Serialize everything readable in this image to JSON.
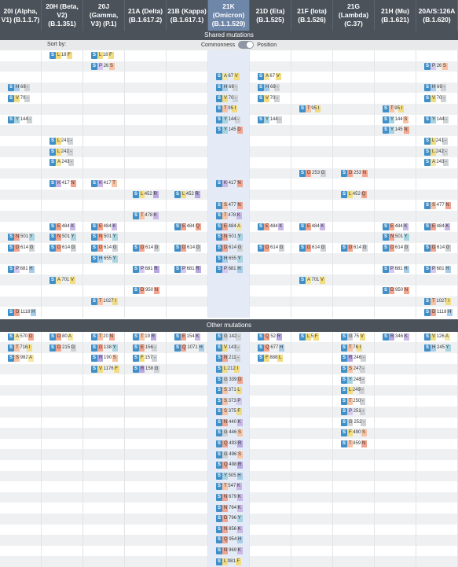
{
  "header": {
    "columns": [
      {
        "line1": "20I (Alpha,",
        "line2": "V1) (B.1.1.7)"
      },
      {
        "line1": "20H (Beta,",
        "line2": "V2) (B.1.351)"
      },
      {
        "line1": "20J (Gamma,",
        "line2": "V3) (P.1)"
      },
      {
        "line1": "21A (Delta)",
        "line2": "(B.1.617.2)"
      },
      {
        "line1": "21B (Kappa)",
        "line2": "(B.1.617.1)"
      },
      {
        "line1": "21K (Omicron)",
        "line2": "(B.1.1.529)"
      },
      {
        "line1": "21D (Eta)",
        "line2": "(B.1.525)"
      },
      {
        "line1": "21F (Iota)",
        "line2": "(B.1.526)"
      },
      {
        "line1": "21G (Lambda)",
        "line2": "(C.37)"
      },
      {
        "line1": "21H (Mu)",
        "line2": "(B.1.621)"
      },
      {
        "line1": "20A/S:126A",
        "line2": "(B.1.620)"
      }
    ]
  },
  "shared": {
    "title": "Shared mutations",
    "sort_by": "Sort by:",
    "opt_commonness": "Commonness",
    "opt_position": "Position",
    "rows": [
      [
        null,
        {
          "g": "S",
          "p": "L 18 F"
        },
        {
          "g": "S",
          "p": "L 18 F"
        },
        null,
        null,
        null,
        null,
        null,
        null,
        null,
        null
      ],
      [
        null,
        null,
        {
          "g": "S",
          "p": "P 26 S"
        },
        null,
        null,
        null,
        null,
        null,
        null,
        null,
        {
          "g": "S",
          "p": "P 26 S"
        }
      ],
      [
        null,
        null,
        null,
        null,
        null,
        {
          "g": "S",
          "p": "A 67 V"
        },
        {
          "g": "S",
          "p": "A 67 V"
        },
        null,
        null,
        null,
        null
      ],
      [
        {
          "g": "S",
          "p": "H 69 -"
        },
        null,
        null,
        null,
        null,
        {
          "g": "S",
          "p": "H 69 -"
        },
        {
          "g": "S",
          "p": "H 69 -"
        },
        null,
        null,
        null,
        {
          "g": "S",
          "p": "H 69 -"
        }
      ],
      [
        {
          "g": "S",
          "p": "V 70 -"
        },
        null,
        null,
        null,
        null,
        {
          "g": "S",
          "p": "V 70 -"
        },
        {
          "g": "S",
          "p": "V 70 -"
        },
        null,
        null,
        null,
        {
          "g": "S",
          "p": "V 70 -"
        }
      ],
      [
        null,
        null,
        null,
        null,
        null,
        {
          "g": "S",
          "p": "T 95 I"
        },
        null,
        {
          "g": "S",
          "p": "T 95 I"
        },
        null,
        {
          "g": "S",
          "p": "T 95 I"
        },
        null
      ],
      [
        {
          "g": "S",
          "p": "Y 144 -"
        },
        null,
        null,
        null,
        null,
        {
          "g": "S",
          "p": "Y 144 -"
        },
        {
          "g": "S",
          "p": "Y 144 -"
        },
        null,
        null,
        {
          "g": "S",
          "p": "Y 144 S"
        },
        {
          "g": "S",
          "p": "Y 144 -"
        }
      ],
      [
        null,
        null,
        null,
        null,
        null,
        {
          "g": "S",
          "p": "Y 145 D"
        },
        null,
        null,
        null,
        {
          "g": "S",
          "p": "Y 145 N"
        },
        null
      ],
      [
        null,
        {
          "g": "S",
          "p": "L 241 -"
        },
        null,
        null,
        null,
        null,
        null,
        null,
        null,
        null,
        {
          "g": "S",
          "p": "L 241 -"
        }
      ],
      [
        null,
        {
          "g": "S",
          "p": "L 242 -"
        },
        null,
        null,
        null,
        null,
        null,
        null,
        null,
        null,
        {
          "g": "S",
          "p": "L 242 -"
        }
      ],
      [
        null,
        {
          "g": "S",
          "p": "A 243 -"
        },
        null,
        null,
        null,
        null,
        null,
        null,
        null,
        null,
        {
          "g": "S",
          "p": "A 243 -"
        }
      ],
      [
        null,
        null,
        null,
        null,
        null,
        null,
        null,
        {
          "g": "S",
          "p": "D 253 G"
        },
        {
          "g": "S",
          "p": "D 253 N"
        },
        null,
        null
      ],
      [
        null,
        {
          "g": "S",
          "p": "K 417 N"
        },
        {
          "g": "S",
          "p": "K 417 T"
        },
        null,
        null,
        {
          "g": "S",
          "p": "K 417 N"
        },
        null,
        null,
        null,
        null,
        null
      ],
      [
        null,
        null,
        null,
        {
          "g": "S",
          "p": "L 452 R"
        },
        {
          "g": "S",
          "p": "L 452 R"
        },
        null,
        null,
        null,
        {
          "g": "S",
          "p": "L 452 Q"
        },
        null,
        null
      ],
      [
        null,
        null,
        null,
        null,
        null,
        {
          "g": "S",
          "p": "S 477 N"
        },
        null,
        null,
        null,
        null,
        {
          "g": "S",
          "p": "S 477 N"
        }
      ],
      [
        null,
        null,
        null,
        {
          "g": "S",
          "p": "T 478 K"
        },
        null,
        {
          "g": "S",
          "p": "T 478 K"
        },
        null,
        null,
        null,
        null,
        null
      ],
      [
        null,
        {
          "g": "S",
          "p": "E 484 K"
        },
        {
          "g": "S",
          "p": "E 484 K"
        },
        null,
        {
          "g": "S",
          "p": "E 484 Q"
        },
        {
          "g": "S",
          "p": "E 484 A"
        },
        {
          "g": "S",
          "p": "E 484 K"
        },
        {
          "g": "S",
          "p": "E 484 K"
        },
        null,
        {
          "g": "S",
          "p": "E 484 K"
        },
        {
          "g": "S",
          "p": "E 484 K"
        }
      ],
      [
        {
          "g": "S",
          "p": "N 501 Y"
        },
        {
          "g": "S",
          "p": "N 501 Y"
        },
        {
          "g": "S",
          "p": "N 501 Y"
        },
        null,
        null,
        {
          "g": "S",
          "p": "N 501 Y"
        },
        null,
        null,
        null,
        {
          "g": "S",
          "p": "N 501 Y"
        },
        null
      ],
      [
        {
          "g": "S",
          "p": "D 614 G"
        },
        {
          "g": "S",
          "p": "D 614 G"
        },
        {
          "g": "S",
          "p": "D 614 G"
        },
        {
          "g": "S",
          "p": "D 614 G"
        },
        {
          "g": "S",
          "p": "D 614 G"
        },
        {
          "g": "S",
          "p": "D 614 G"
        },
        {
          "g": "S",
          "p": "D 614 G"
        },
        {
          "g": "S",
          "p": "D 614 G"
        },
        {
          "g": "S",
          "p": "D 614 G"
        },
        {
          "g": "S",
          "p": "D 614 G"
        },
        {
          "g": "S",
          "p": "D 614 G"
        }
      ],
      [
        null,
        null,
        {
          "g": "S",
          "p": "H 655 Y"
        },
        null,
        null,
        {
          "g": "S",
          "p": "H 655 Y"
        },
        null,
        null,
        null,
        null,
        null
      ],
      [
        {
          "g": "S",
          "p": "P 681 H"
        },
        null,
        null,
        {
          "g": "S",
          "p": "P 681 R"
        },
        {
          "g": "S",
          "p": "P 681 R"
        },
        {
          "g": "S",
          "p": "P 681 H"
        },
        null,
        null,
        null,
        {
          "g": "S",
          "p": "P 681 H"
        },
        {
          "g": "S",
          "p": "P 681 H"
        }
      ],
      [
        null,
        {
          "g": "S",
          "p": "A 701 V"
        },
        null,
        null,
        null,
        null,
        null,
        {
          "g": "S",
          "p": "A 701 V"
        },
        null,
        null,
        null
      ],
      [
        null,
        null,
        null,
        {
          "g": "S",
          "p": "D 950 N"
        },
        null,
        null,
        null,
        null,
        null,
        {
          "g": "S",
          "p": "D 950 N"
        },
        null
      ],
      [
        null,
        null,
        {
          "g": "S",
          "p": "T 1027 I"
        },
        null,
        null,
        null,
        null,
        null,
        null,
        null,
        {
          "g": "S",
          "p": "T 1027 I"
        }
      ],
      [
        {
          "g": "S",
          "p": "D 1118 H"
        },
        null,
        null,
        null,
        null,
        null,
        null,
        null,
        null,
        null,
        {
          "g": "S",
          "p": "D 1118 H"
        }
      ]
    ]
  },
  "other": {
    "title": "Other mutations",
    "rows": [
      [
        {
          "g": "S",
          "p": "A 570 D"
        },
        {
          "g": "S",
          "p": "D 80 A"
        },
        {
          "g": "S",
          "p": "T 20 N"
        },
        {
          "g": "S",
          "p": "T 19 R"
        },
        {
          "g": "S",
          "p": "E 154 K"
        },
        {
          "g": "S",
          "p": "G 142 -"
        },
        {
          "g": "S",
          "p": "Q 52 R"
        },
        {
          "g": "S",
          "p": "L 5 F"
        },
        {
          "g": "S",
          "p": "G 75 V"
        },
        {
          "g": "S",
          "p": "R 346 K"
        },
        {
          "g": "S",
          "p": "V 126 A"
        }
      ],
      [
        {
          "g": "S",
          "p": "T 716 I"
        },
        {
          "g": "S",
          "p": "D 215 G"
        },
        {
          "g": "S",
          "p": "D 138 Y"
        },
        {
          "g": "S",
          "p": "E 156 -"
        },
        {
          "g": "S",
          "p": "Q 1071 H"
        },
        {
          "g": "S",
          "p": "V 143 -"
        },
        {
          "g": "S",
          "p": "Q 677 H"
        },
        null,
        {
          "g": "S",
          "p": "T 76 I"
        },
        null,
        {
          "g": "S",
          "p": "H 245 Y"
        }
      ],
      [
        {
          "g": "S",
          "p": "S 982 A"
        },
        null,
        {
          "g": "S",
          "p": "R 190 S"
        },
        {
          "g": "S",
          "p": "F 157 -"
        },
        null,
        {
          "g": "S",
          "p": "N 211 -"
        },
        {
          "g": "S",
          "p": "F 888 L"
        },
        null,
        {
          "g": "S",
          "p": "R 246 -"
        },
        null,
        null
      ],
      [
        null,
        null,
        {
          "g": "S",
          "p": "V 1176 F"
        },
        {
          "g": "S",
          "p": "R 158 G"
        },
        null,
        {
          "g": "S",
          "p": "L 212 I"
        },
        null,
        null,
        {
          "g": "S",
          "p": "S 247 -"
        },
        null,
        null
      ],
      [
        null,
        null,
        null,
        null,
        null,
        {
          "g": "S",
          "p": "G 339 D"
        },
        null,
        null,
        {
          "g": "S",
          "p": "Y 248 -"
        },
        null,
        null
      ],
      [
        null,
        null,
        null,
        null,
        null,
        {
          "g": "S",
          "p": "S 371 L"
        },
        null,
        null,
        {
          "g": "S",
          "p": "L 249 -"
        },
        null,
        null
      ],
      [
        null,
        null,
        null,
        null,
        null,
        {
          "g": "S",
          "p": "S 373 P"
        },
        null,
        null,
        {
          "g": "S",
          "p": "T 250 -"
        },
        null,
        null
      ],
      [
        null,
        null,
        null,
        null,
        null,
        {
          "g": "S",
          "p": "S 375 F"
        },
        null,
        null,
        {
          "g": "S",
          "p": "P 251 -"
        },
        null,
        null
      ],
      [
        null,
        null,
        null,
        null,
        null,
        {
          "g": "S",
          "p": "N 440 K"
        },
        null,
        null,
        {
          "g": "S",
          "p": "G 252 -"
        },
        null,
        null
      ],
      [
        null,
        null,
        null,
        null,
        null,
        {
          "g": "S",
          "p": "G 446 S"
        },
        null,
        null,
        {
          "g": "S",
          "p": "F 490 S"
        },
        null,
        null
      ],
      [
        null,
        null,
        null,
        null,
        null,
        {
          "g": "S",
          "p": "Q 493 R"
        },
        null,
        null,
        {
          "g": "S",
          "p": "T 859 N"
        },
        null,
        null
      ],
      [
        null,
        null,
        null,
        null,
        null,
        {
          "g": "S",
          "p": "G 496 S"
        },
        null,
        null,
        null,
        null,
        null
      ],
      [
        null,
        null,
        null,
        null,
        null,
        {
          "g": "S",
          "p": "Q 498 R"
        },
        null,
        null,
        null,
        null,
        null
      ],
      [
        null,
        null,
        null,
        null,
        null,
        {
          "g": "S",
          "p": "Y 505 H"
        },
        null,
        null,
        null,
        null,
        null
      ],
      [
        null,
        null,
        null,
        null,
        null,
        {
          "g": "S",
          "p": "T 547 K"
        },
        null,
        null,
        null,
        null,
        null
      ],
      [
        null,
        null,
        null,
        null,
        null,
        {
          "g": "S",
          "p": "N 679 K"
        },
        null,
        null,
        null,
        null,
        null
      ],
      [
        null,
        null,
        null,
        null,
        null,
        {
          "g": "S",
          "p": "N 764 K"
        },
        null,
        null,
        null,
        null,
        null
      ],
      [
        null,
        null,
        null,
        null,
        null,
        {
          "g": "S",
          "p": "D 796 Y"
        },
        null,
        null,
        null,
        null,
        null
      ],
      [
        null,
        null,
        null,
        null,
        null,
        {
          "g": "S",
          "p": "N 856 K"
        },
        null,
        null,
        null,
        null,
        null
      ],
      [
        null,
        null,
        null,
        null,
        null,
        {
          "g": "S",
          "p": "Q 954 H"
        },
        null,
        null,
        null,
        null,
        null
      ],
      [
        null,
        null,
        null,
        null,
        null,
        {
          "g": "S",
          "p": "N 969 K"
        },
        null,
        null,
        null,
        null,
        null
      ],
      [
        null,
        null,
        null,
        null,
        null,
        {
          "g": "S",
          "p": "L 981 F"
        },
        null,
        null,
        null,
        null,
        null
      ]
    ]
  },
  "aa_colors": {
    "A": "#f5e7a3",
    "C": "#cfd2d5",
    "D": "#f2a48e",
    "E": "#f2a48e",
    "F": "#f1dc82",
    "G": "#cfd2d5",
    "H": "#a7cde8",
    "I": "#f1dc82",
    "K": "#c9b8e6",
    "L": "#f1dc82",
    "M": "#f1dc82",
    "N": "#f2a48e",
    "P": "#d6c9ef",
    "Q": "#f2a48e",
    "R": "#b7a8e2",
    "S": "#f7c3a4",
    "T": "#f7c3a4",
    "V": "#f1dc82",
    "W": "#f1dc82",
    "Y": "#a8d3e0",
    "-": "#cfd2d5"
  },
  "selected_column": 5
}
